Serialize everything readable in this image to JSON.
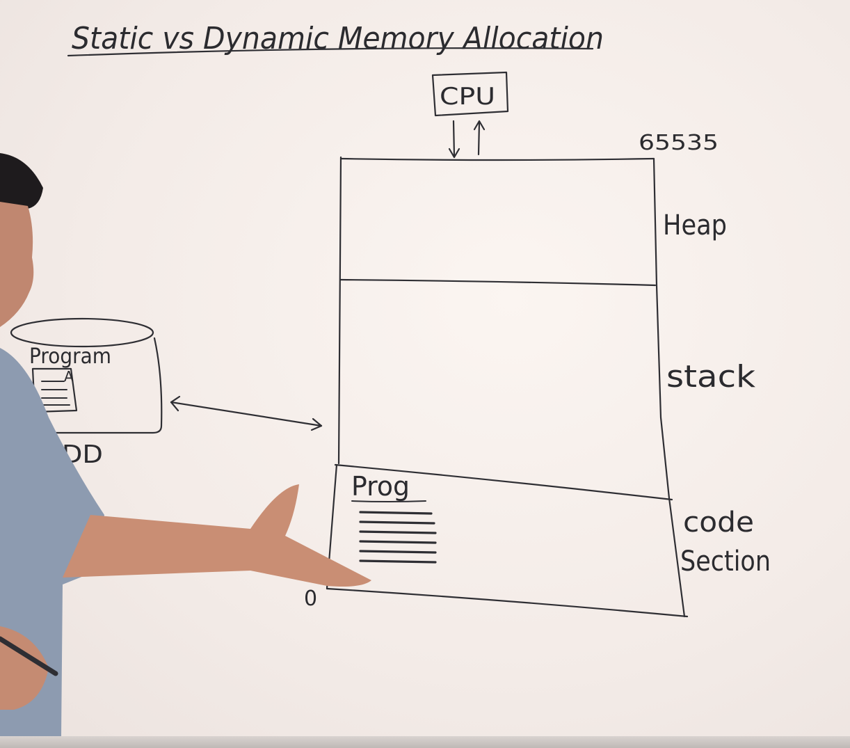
{
  "title": "Static vs Dynamic Memory Allocation",
  "cpu_label": "CPU",
  "top_address": "65535",
  "bottom_address": "0",
  "memory_sections": {
    "heap": "Heap",
    "stack": "stack",
    "code_line1": "code",
    "code_line2": "Section"
  },
  "code_program_label": "Prog",
  "hdd": {
    "program_label": "Program",
    "doc_mark": "A",
    "drive_label": "HDD"
  },
  "colors": {
    "board": "#f4ece8",
    "ink": "#2e2e33",
    "shirt": "#8d9bb0",
    "skin": "#c98e74"
  }
}
